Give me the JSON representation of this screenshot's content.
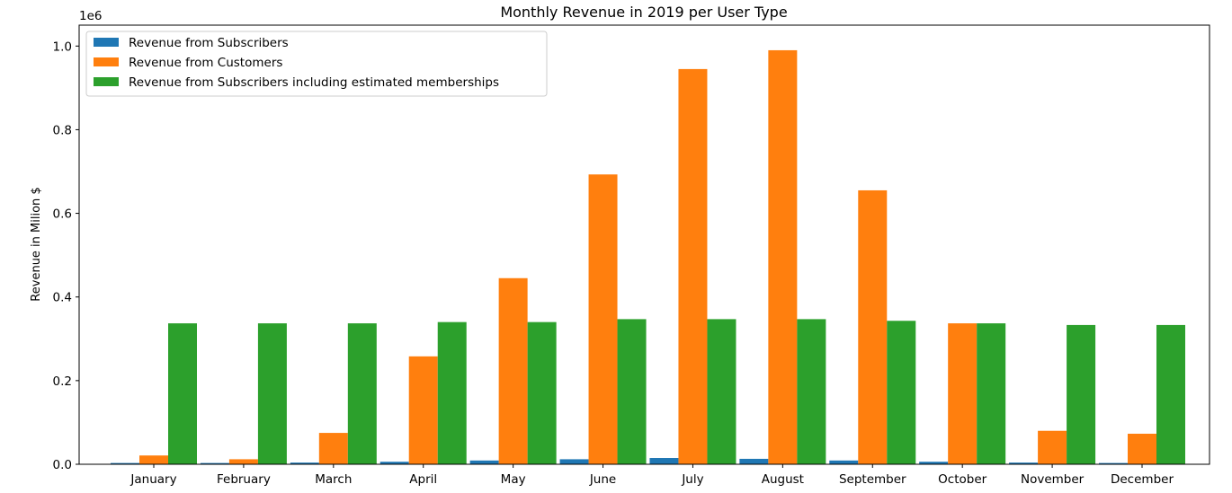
{
  "chart_data": {
    "type": "bar",
    "title": "Monthly Revenue in 2019 per User Type",
    "xlabel": "",
    "ylabel": "Revenue in Milion $",
    "y_offset_label": "1e6",
    "ylim": [
      0,
      1.05
    ],
    "yticks": [
      "0.0",
      "0.2",
      "0.4",
      "0.6",
      "0.8",
      "1.0"
    ],
    "ytick_values": [
      0,
      0.2,
      0.4,
      0.6,
      0.8,
      1.0
    ],
    "grid": false,
    "legend_position": "top-left",
    "categories": [
      "January",
      "February",
      "March",
      "April",
      "May",
      "June",
      "July",
      "August",
      "September",
      "October",
      "November",
      "December"
    ],
    "series": [
      {
        "name": "Revenue from Subscribers",
        "color": "#1f77b4",
        "values": [
          0.003,
          0.003,
          0.004,
          0.006,
          0.009,
          0.012,
          0.015,
          0.013,
          0.009,
          0.006,
          0.004,
          0.003
        ]
      },
      {
        "name": "Revenue from Customers",
        "color": "#ff7f0e",
        "values": [
          0.021,
          0.012,
          0.075,
          0.258,
          0.445,
          0.693,
          0.945,
          0.99,
          0.655,
          0.337,
          0.08,
          0.073
        ]
      },
      {
        "name": "Revenue from Subscribers including estimated memberships",
        "color": "#2ca02c",
        "values": [
          0.337,
          0.337,
          0.337,
          0.34,
          0.34,
          0.347,
          0.347,
          0.347,
          0.343,
          0.337,
          0.333,
          0.333
        ]
      }
    ]
  }
}
